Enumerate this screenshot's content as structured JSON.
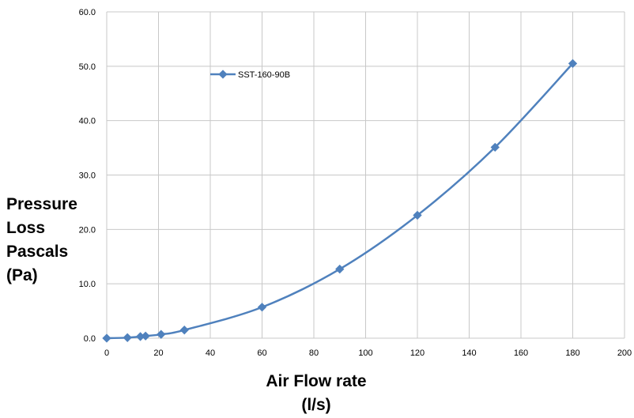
{
  "chart_data": {
    "type": "line",
    "title": "",
    "xlabel_lines": [
      "Air Flow rate",
      "(l/s)"
    ],
    "ylabel_lines": [
      "Pressure",
      "Loss",
      "Pascals",
      "(Pa)"
    ],
    "xlim": [
      0,
      200
    ],
    "ylim": [
      0,
      60
    ],
    "x_ticks": [
      "0",
      "20",
      "40",
      "60",
      "80",
      "100",
      "120",
      "140",
      "160",
      "180",
      "200"
    ],
    "y_ticks": [
      "0.0",
      "10.0",
      "20.0",
      "30.0",
      "40.0",
      "50.0",
      "60.0"
    ],
    "grid": true,
    "legend_position": "upper-left",
    "series": [
      {
        "name": "SST-160-90B",
        "color": "#4F81BD",
        "marker": "diamond",
        "smooth": true,
        "x": [
          0,
          8,
          13,
          15,
          21,
          30,
          60,
          90,
          120,
          150,
          180
        ],
        "y": [
          0.0,
          0.1,
          0.3,
          0.4,
          0.7,
          1.5,
          5.7,
          12.7,
          22.6,
          35.1,
          50.5
        ]
      }
    ]
  }
}
